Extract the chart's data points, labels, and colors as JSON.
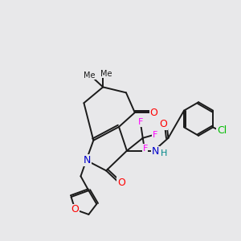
{
  "bg_color": "#e8e8ea",
  "bond_color": "#1a1a1a",
  "atom_colors": {
    "O": "#ff0000",
    "N": "#0000cc",
    "F": "#ff00ff",
    "Cl": "#00bb00",
    "C": "#1a1a1a",
    "H": "#008888"
  }
}
